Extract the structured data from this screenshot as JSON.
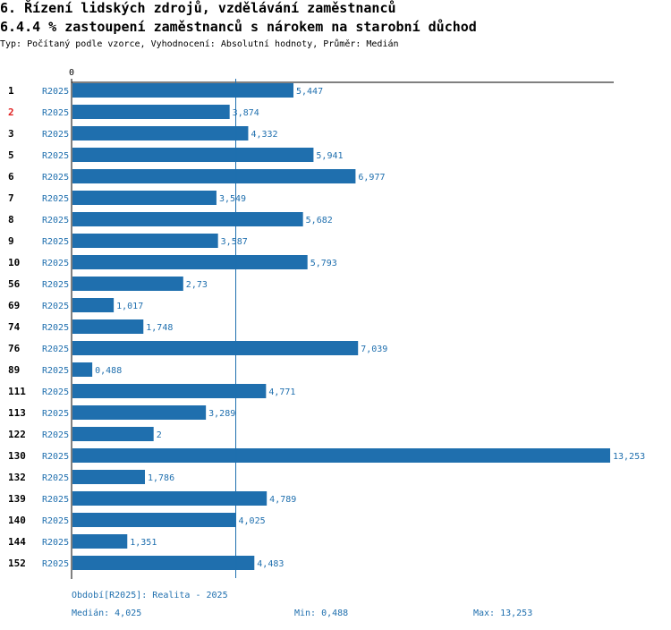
{
  "header": {
    "title": "6. Řízení lidských zdrojů, vzdělávání zaměstnanců",
    "chart_title": "6.4.4 % zastoupení zaměstnanců s nárokem na starobní důchod",
    "subtitle": "Typ: Počítaný podle vzorce, Vyhodnocení: Absolutní hodnoty, Průměr: Medián"
  },
  "colors": {
    "bar": "#1f6fae",
    "label_blue": "#1f6fae",
    "highlight": "#e02020",
    "axis": "#000000"
  },
  "chart_data": {
    "type": "bar",
    "orientation": "horizontal",
    "axis_zero_label": "0",
    "xlim": [
      0,
      13.253
    ],
    "median": 4.025,
    "highlight_category": "2",
    "series_label": "R2025",
    "categories": [
      "1",
      "2",
      "3",
      "5",
      "6",
      "7",
      "8",
      "9",
      "10",
      "56",
      "69",
      "74",
      "76",
      "89",
      "111",
      "113",
      "122",
      "130",
      "132",
      "139",
      "140",
      "144",
      "152"
    ],
    "values": [
      5.447,
      3.874,
      4.332,
      5.941,
      6.977,
      3.549,
      5.682,
      3.587,
      5.793,
      2.73,
      1.017,
      1.748,
      7.039,
      0.488,
      4.771,
      3.289,
      2,
      13.253,
      1.786,
      4.789,
      4.025,
      1.351,
      4.483
    ],
    "value_labels": [
      "5,447",
      "3,874",
      "4,332",
      "5,941",
      "6,977",
      "3,549",
      "5,682",
      "3,587",
      "5,793",
      "2,73",
      "1,017",
      "1,748",
      "7,039",
      "0,488",
      "4,771",
      "3,289",
      "2",
      "13,253",
      "1,786",
      "4,789",
      "4,025",
      "1,351",
      "4,483"
    ]
  },
  "footer": {
    "period": "Období[R2025]: Realita - 2025",
    "median": "Medián: 4,025",
    "min": "Min: 0,488",
    "max": "Max: 13,253"
  }
}
